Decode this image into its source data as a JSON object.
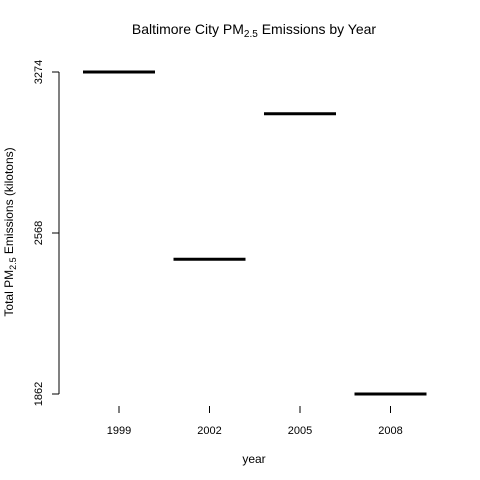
{
  "chart_data": {
    "type": "bar",
    "mark": "horizontal-segment",
    "title": "Baltimore City PM2.5 Emissions by Year",
    "xlabel": "year",
    "ylabel": "Total PM2.5 Emissions (kilotons)",
    "categories": [
      "1999",
      "2002",
      "2005",
      "2008"
    ],
    "values": [
      3274,
      2453,
      3091,
      1862
    ],
    "y_ticks": [
      "1862",
      "2568",
      "3274"
    ],
    "ylim": [
      1862,
      3274
    ],
    "grid": false,
    "legend": "none",
    "colors": {
      "series": "#000000",
      "axis": "#000000"
    }
  }
}
